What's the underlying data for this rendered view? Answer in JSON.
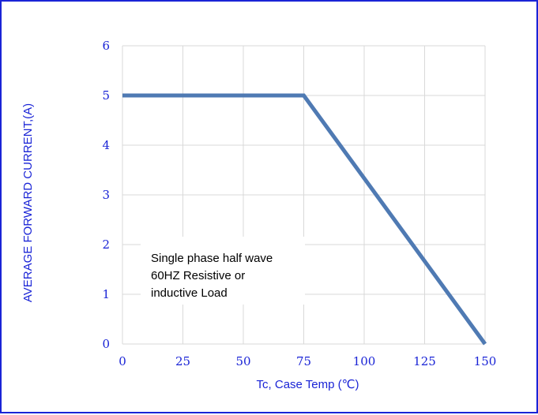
{
  "chart_data": {
    "type": "line",
    "xlabel": "Tc, Case Temp (℃)",
    "ylabel": "AVERAGE FORWARD CURRENT,(A)",
    "xlim": [
      0,
      150
    ],
    "ylim": [
      0,
      6
    ],
    "x_ticks": [
      0,
      25,
      50,
      75,
      100,
      125,
      150
    ],
    "y_ticks": [
      0,
      1,
      2,
      3,
      4,
      5,
      6
    ],
    "grid": true,
    "series": [
      {
        "x": [
          0,
          75,
          150
        ],
        "y": [
          5,
          5,
          0
        ]
      }
    ],
    "annotation": {
      "lines": [
        "Single phase half wave",
        "60HZ Resistive or",
        "inductive Load"
      ]
    }
  },
  "colors": {
    "border": "#1a24d6",
    "text": "#1a24d6",
    "line": "#4f7ab3",
    "grid": "#d9d9d9"
  }
}
